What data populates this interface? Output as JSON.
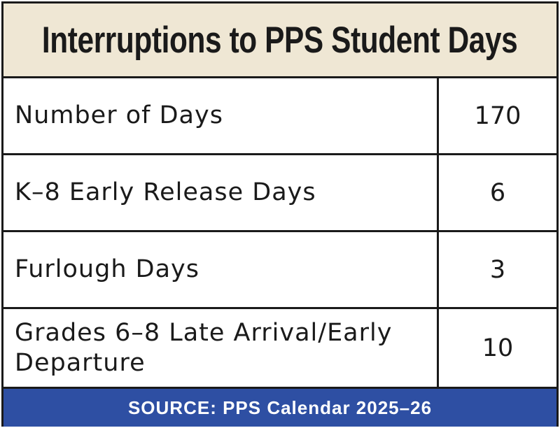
{
  "title": "Interruptions to PPS Student Days",
  "chart_data": {
    "type": "table",
    "title": "Interruptions to PPS Student Days",
    "rows": [
      {
        "label": "Number of Days",
        "value": "170"
      },
      {
        "label": "K–8 Early Release Days",
        "value": "6"
      },
      {
        "label": "Furlough Days",
        "value": "3"
      },
      {
        "label": "Grades 6–8 Late Arrival/Early Departure",
        "value": "10"
      }
    ],
    "source": "SOURCE: PPS Calendar 2025–26"
  },
  "colors": {
    "title_background": "#efe7d4",
    "footer_background": "#2e4fa3",
    "border": "#1a1a1a"
  }
}
